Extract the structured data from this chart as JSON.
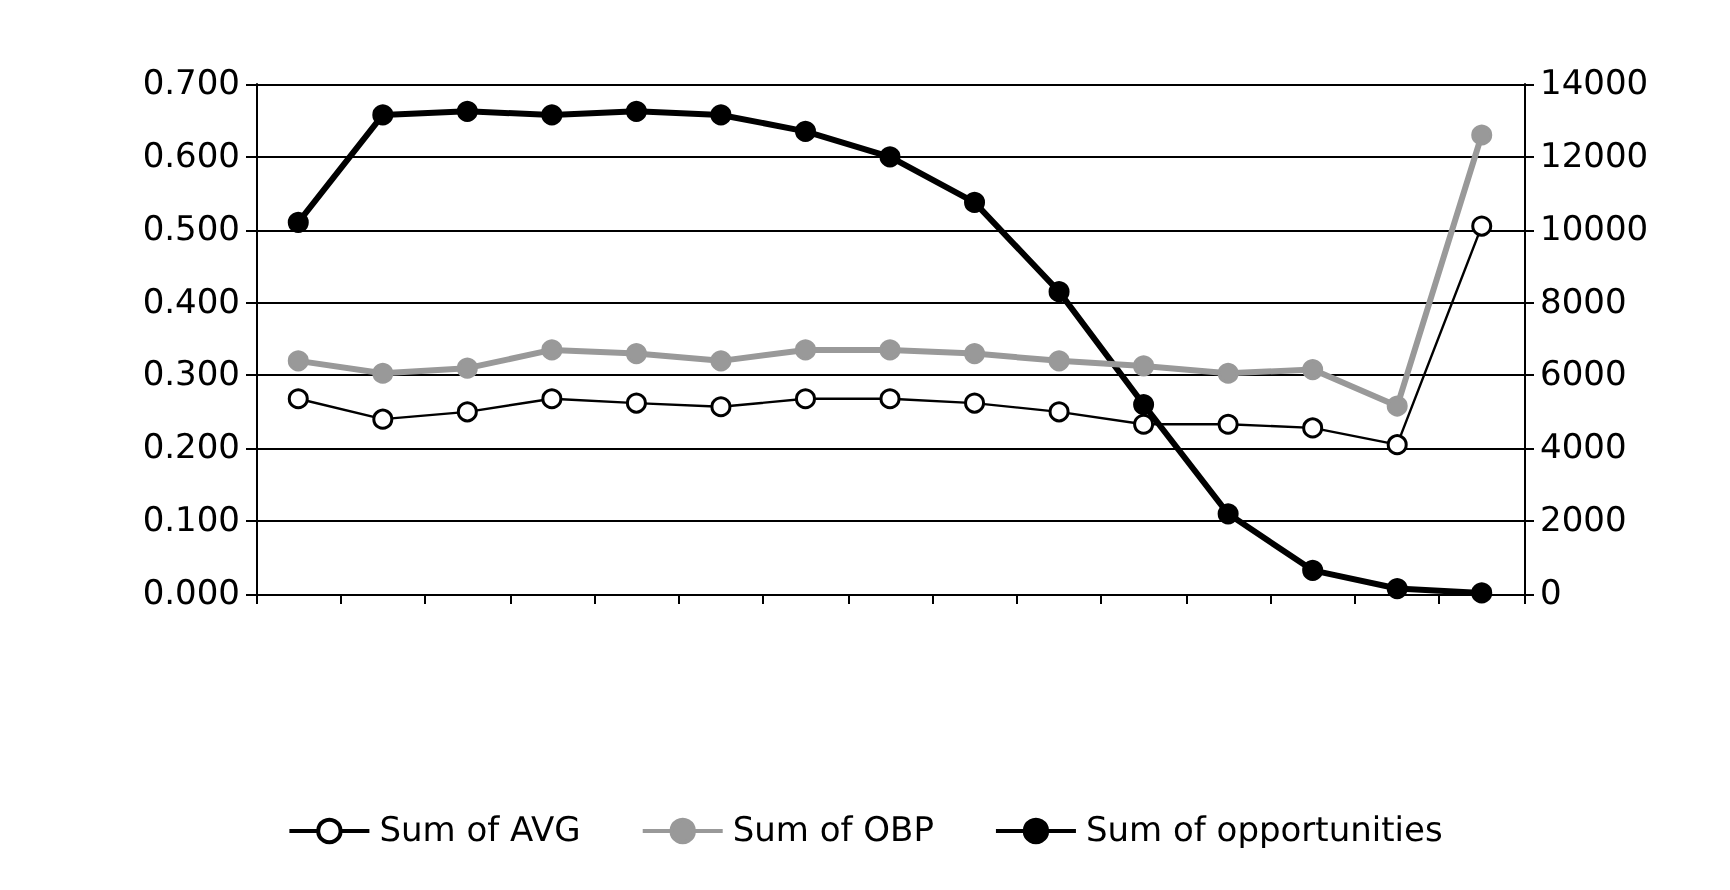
{
  "chart_data": {
    "type": "line",
    "categories": [
      null,
      null,
      null,
      null,
      null,
      null,
      null,
      null,
      null,
      null,
      null,
      null,
      null,
      null,
      null
    ],
    "ylim": [
      0,
      0.7
    ],
    "yticks": [
      {
        "value": 0,
        "label": "0.000"
      },
      {
        "value": 0.1,
        "label": "0.100"
      },
      {
        "value": 0.2,
        "label": "0.200"
      },
      {
        "value": 0.3,
        "label": "0.300"
      },
      {
        "value": 0.4,
        "label": "0.400"
      },
      {
        "value": 0.5,
        "label": "0.500"
      },
      {
        "value": 0.6,
        "label": "0.600"
      },
      {
        "value": 0.7,
        "label": "0.700"
      }
    ],
    "y2lim": [
      0,
      14000
    ],
    "y2ticks": [
      0,
      2000,
      4000,
      6000,
      8000,
      10000,
      12000,
      14000
    ],
    "grid": "y",
    "legend": "bottom",
    "marker": "circle",
    "line_style": "solid",
    "series": [
      {
        "name": "Sum of AVG",
        "color": "#000000",
        "values": [
          0.268,
          0.24,
          0.25,
          0.268,
          0.262,
          0.257,
          0.268,
          0.268,
          0.262,
          0.25,
          0.233,
          0.233,
          0.228,
          0.205,
          0.505
        ]
      },
      {
        "name": "Sum of OBP",
        "color": "#999999",
        "values": [
          0.32,
          0.303,
          0.31,
          0.335,
          0.33,
          0.32,
          0.335,
          0.335,
          0.33,
          0.32,
          0.313,
          0.303,
          0.308,
          0.258,
          0.63
        ]
      },
      {
        "name": "Sum of opportunities",
        "color": "#000000",
        "axis": "y2",
        "values": [
          10200,
          13150,
          13250,
          13150,
          13250,
          13150,
          12700,
          12000,
          10750,
          8300,
          5200,
          2200,
          650,
          150,
          30
        ]
      }
    ]
  }
}
